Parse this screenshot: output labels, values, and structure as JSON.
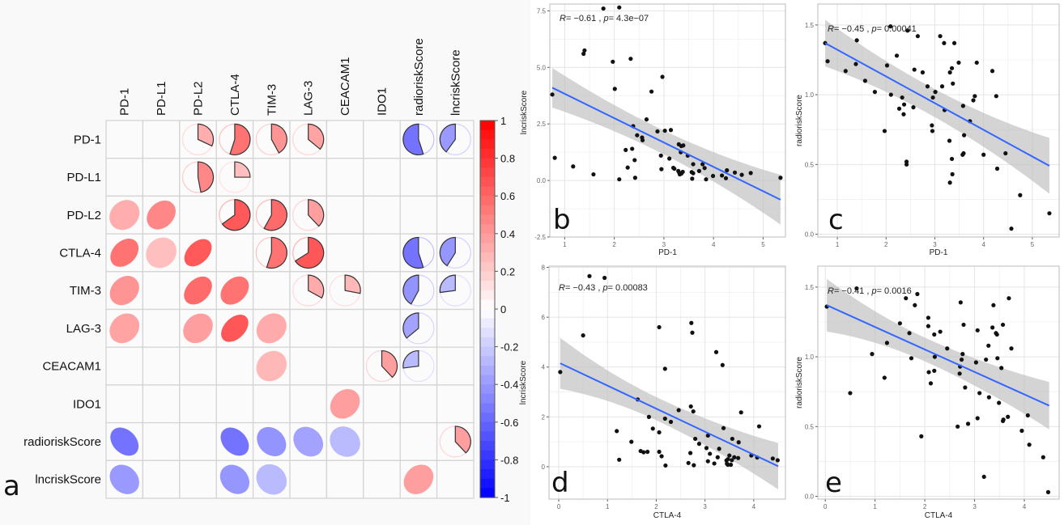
{
  "figure": {
    "panel_letters": [
      "a",
      "b",
      "c",
      "d",
      "e"
    ]
  },
  "chart_data": [
    {
      "type": "heatmap",
      "panel": "a",
      "title": "",
      "variables": [
        "PD-1",
        "PD-L1",
        "PD-L2",
        "CTLA-4",
        "TIM-3",
        "LAG-3",
        "CEACAM1",
        "IDO1",
        "radioriskScore",
        "lncriskScore"
      ],
      "upper_glyph": "pie",
      "lower_glyph": "ellipse",
      "blank_if_insignificant": true,
      "correlations": [
        {
          "a": "PD-1",
          "b": "PD-L2",
          "r": 0.32
        },
        {
          "a": "PD-1",
          "b": "CTLA-4",
          "r": 0.55
        },
        {
          "a": "PD-1",
          "b": "TIM-3",
          "r": 0.42
        },
        {
          "a": "PD-1",
          "b": "LAG-3",
          "r": 0.36
        },
        {
          "a": "PD-1",
          "b": "radioriskScore",
          "r": -0.55
        },
        {
          "a": "PD-1",
          "b": "lncriskScore",
          "r": -0.4
        },
        {
          "a": "PD-L1",
          "b": "PD-L2",
          "r": 0.47
        },
        {
          "a": "PD-L1",
          "b": "CTLA-4",
          "r": 0.25
        },
        {
          "a": "PD-L2",
          "b": "CTLA-4",
          "r": 0.65
        },
        {
          "a": "PD-L2",
          "b": "TIM-3",
          "r": 0.58
        },
        {
          "a": "PD-L2",
          "b": "LAG-3",
          "r": 0.38
        },
        {
          "a": "CTLA-4",
          "b": "TIM-3",
          "r": 0.55
        },
        {
          "a": "CTLA-4",
          "b": "LAG-3",
          "r": 0.66
        },
        {
          "a": "CTLA-4",
          "b": "radioriskScore",
          "r": -0.55
        },
        {
          "a": "CTLA-4",
          "b": "lncriskScore",
          "r": -0.41
        },
        {
          "a": "TIM-3",
          "b": "LAG-3",
          "r": 0.33
        },
        {
          "a": "TIM-3",
          "b": "CEACAM1",
          "r": 0.28
        },
        {
          "a": "TIM-3",
          "b": "radioriskScore",
          "r": -0.42
        },
        {
          "a": "TIM-3",
          "b": "lncriskScore",
          "r": -0.27
        },
        {
          "a": "LAG-3",
          "b": "radioriskScore",
          "r": -0.36
        },
        {
          "a": "CEACAM1",
          "b": "IDO1",
          "r": 0.38
        },
        {
          "a": "CEACAM1",
          "b": "radioriskScore",
          "r": -0.27
        },
        {
          "a": "radioriskScore",
          "b": "lncriskScore",
          "r": 0.38
        }
      ],
      "colorbar": {
        "range": [
          -1,
          1
        ],
        "ticks": [
          "1",
          "0.8",
          "0.6",
          "0.4",
          "0.2",
          "0",
          "-0.2",
          "-0.4",
          "-0.6",
          "-0.8",
          "-1"
        ],
        "colors": {
          "low": "#0000ff",
          "mid": "#ffffff",
          "high": "#ff0000"
        }
      }
    },
    {
      "type": "scatter",
      "panel": "b",
      "xlabel": "PD-1",
      "ylabel": "lncriskScore",
      "xlim": [
        0.7,
        5.45
      ],
      "ylim": [
        -2.5,
        7.8
      ],
      "xticks": [
        1,
        2,
        3,
        4,
        5
      ],
      "yticks": [
        -2.5,
        0.0,
        2.5,
        5.0,
        7.5
      ],
      "ytick_labels": [
        "-2.5",
        "0.0",
        "2.5",
        "5.0",
        "7.5"
      ],
      "annotation": {
        "r_label": "R",
        "r_value": "= −0.61 , ",
        "p_label": "p",
        "p_value": "= 4.3e−07"
      },
      "fit": {
        "x": [
          0.75,
          5.35
        ],
        "y": [
          4.1,
          -0.85
        ],
        "ci_low": [
          3.0,
          -2.0
        ],
        "ci_high": [
          5.15,
          0.25
        ]
      },
      "line_color": "#3366ff",
      "points": [
        [
          1.78,
          7.6
        ],
        [
          2.1,
          7.65
        ],
        [
          1.38,
          5.6
        ],
        [
          1.4,
          5.75
        ],
        [
          1.97,
          5.25
        ],
        [
          2.33,
          5.38
        ],
        [
          2.97,
          4.58
        ],
        [
          2.01,
          4.05
        ],
        [
          2.75,
          3.93
        ],
        [
          0.75,
          3.8
        ],
        [
          2.65,
          2.7
        ],
        [
          2.87,
          2.17
        ],
        [
          3.02,
          2.2
        ],
        [
          3.14,
          2.23
        ],
        [
          2.38,
          2.4
        ],
        [
          2.46,
          2.0
        ],
        [
          2.56,
          1.9
        ],
        [
          2.57,
          1.78
        ],
        [
          3.3,
          1.6
        ],
        [
          3.35,
          1.52
        ],
        [
          3.39,
          1.55
        ],
        [
          3.34,
          1.25
        ],
        [
          3.48,
          1.1
        ],
        [
          2.23,
          1.35
        ],
        [
          2.36,
          1.4
        ],
        [
          2.94,
          1.1
        ],
        [
          3.11,
          0.97
        ],
        [
          0.8,
          1.0
        ],
        [
          2.41,
          0.9
        ],
        [
          1.17,
          0.62
        ],
        [
          2.27,
          0.57
        ],
        [
          3.19,
          0.56
        ],
        [
          3.21,
          0.52
        ],
        [
          2.95,
          0.5
        ],
        [
          3.29,
          0.42
        ],
        [
          3.31,
          0.34
        ],
        [
          3.32,
          0.27
        ],
        [
          3.35,
          0.3
        ],
        [
          3.38,
          0.38
        ],
        [
          3.56,
          0.37
        ],
        [
          3.59,
          0.32
        ],
        [
          3.59,
          0.72
        ],
        [
          3.78,
          0.72
        ],
        [
          3.71,
          0.42
        ],
        [
          3.82,
          0.55
        ],
        [
          1.58,
          0.27
        ],
        [
          2.42,
          0.12
        ],
        [
          2.1,
          0.05
        ],
        [
          3.57,
          0.08
        ],
        [
          3.85,
          0.05
        ],
        [
          3.99,
          0.2
        ],
        [
          4.17,
          0.22
        ],
        [
          4.25,
          0.1
        ],
        [
          4.27,
          0.45
        ],
        [
          4.43,
          0.35
        ],
        [
          4.57,
          0.25
        ],
        [
          4.75,
          0.33
        ],
        [
          5.35,
          0.12
        ]
      ]
    },
    {
      "type": "scatter",
      "panel": "c",
      "xlabel": "PD-1",
      "ylabel": "radioriskScore",
      "xlim": [
        0.6,
        5.55
      ],
      "ylim": [
        -0.02,
        1.65
      ],
      "xticks": [
        1,
        2,
        3,
        4,
        5
      ],
      "yticks": [
        0.0,
        0.5,
        1.0,
        1.5
      ],
      "ytick_labels": [
        "0.0",
        "0.5",
        "1.0",
        "1.5"
      ],
      "annotation": {
        "r_label": "R",
        "r_value": "= −0.45 , ",
        "p_label": "p",
        "p_value": "= 0.00041"
      },
      "fit": {
        "x": [
          0.75,
          5.35
        ],
        "y": [
          1.37,
          0.49
        ],
        "ci_low": [
          1.18,
          0.28
        ],
        "ci_high": [
          1.57,
          0.69
        ]
      },
      "line_color": "#3366ff",
      "points": [
        [
          2.09,
          1.49
        ],
        [
          2.44,
          1.46
        ],
        [
          2.65,
          1.42
        ],
        [
          3.11,
          1.42
        ],
        [
          3.19,
          1.37
        ],
        [
          3.4,
          1.37
        ],
        [
          0.75,
          1.37
        ],
        [
          1.4,
          1.39
        ],
        [
          2.22,
          1.28
        ],
        [
          0.8,
          1.24
        ],
        [
          1.38,
          1.22
        ],
        [
          2.02,
          1.21
        ],
        [
          3.49,
          1.23
        ],
        [
          3.86,
          1.23
        ],
        [
          4.18,
          1.17
        ],
        [
          1.17,
          1.17
        ],
        [
          2.58,
          1.18
        ],
        [
          2.75,
          1.16
        ],
        [
          3.35,
          1.19
        ],
        [
          3.31,
          1.16
        ],
        [
          1.57,
          1.1
        ],
        [
          3.37,
          1.08
        ],
        [
          2.85,
          1.06
        ],
        [
          3.15,
          1.06
        ],
        [
          3.01,
          1.02
        ],
        [
          1.77,
          1.02
        ],
        [
          2.1,
          1.0
        ],
        [
          2.33,
          0.98
        ],
        [
          2.96,
          0.98
        ],
        [
          3.82,
          0.99
        ],
        [
          4.26,
          0.99
        ],
        [
          2.37,
          0.93
        ],
        [
          3.58,
          0.92
        ],
        [
          3.79,
          0.96
        ],
        [
          2.27,
          0.9
        ],
        [
          2.56,
          0.91
        ],
        [
          3.2,
          0.89
        ],
        [
          2.36,
          0.86
        ],
        [
          3.72,
          0.81
        ],
        [
          2.94,
          0.78
        ],
        [
          1.97,
          0.74
        ],
        [
          2.95,
          0.74
        ],
        [
          3.6,
          0.71
        ],
        [
          3.3,
          0.67
        ],
        [
          3.57,
          0.57
        ],
        [
          3.59,
          0.58
        ],
        [
          4.0,
          0.57
        ],
        [
          4.45,
          0.58
        ],
        [
          3.35,
          0.54
        ],
        [
          2.42,
          0.52
        ],
        [
          2.42,
          0.5
        ],
        [
          4.28,
          0.47
        ],
        [
          3.36,
          0.43
        ],
        [
          3.31,
          0.37
        ],
        [
          4.75,
          0.28
        ],
        [
          5.35,
          0.15
        ],
        [
          4.57,
          0.04
        ]
      ]
    },
    {
      "type": "scatter",
      "panel": "d",
      "xlabel": "CTLA-4",
      "ylabel": "lncriskScore",
      "xlim": [
        -0.2,
        4.65
      ],
      "ylim": [
        -1.3,
        8.05
      ],
      "xticks": [
        0,
        1,
        2,
        3,
        4
      ],
      "yticks": [
        0,
        2,
        4,
        6,
        8
      ],
      "ytick_labels": [
        "0",
        "2",
        "4",
        "6",
        "8"
      ],
      "annotation": {
        "r_label": "R",
        "r_value": "= −0.43 , ",
        "p_label": "p",
        "p_value": "= 0.00083"
      },
      "fit": {
        "x": [
          0.03,
          4.5
        ],
        "y": [
          4.15,
          0.02
        ],
        "ci_low": [
          2.85,
          -0.9
        ],
        "ci_high": [
          5.45,
          0.95
        ]
      },
      "line_color": "#3366ff",
      "points": [
        [
          0.63,
          7.65
        ],
        [
          0.94,
          7.58
        ],
        [
          2.72,
          5.77
        ],
        [
          2.06,
          5.6
        ],
        [
          2.74,
          5.38
        ],
        [
          0.5,
          5.27
        ],
        [
          3.23,
          4.6
        ],
        [
          3.36,
          4.08
        ],
        [
          2.18,
          3.93
        ],
        [
          0.03,
          3.8
        ],
        [
          1.62,
          2.7
        ],
        [
          2.71,
          2.42
        ],
        [
          2.46,
          2.27
        ],
        [
          2.76,
          2.22
        ],
        [
          3.74,
          2.18
        ],
        [
          1.85,
          2.0
        ],
        [
          2.18,
          1.93
        ],
        [
          2.3,
          1.8
        ],
        [
          4.11,
          1.62
        ],
        [
          3.38,
          1.55
        ],
        [
          1.93,
          1.53
        ],
        [
          1.19,
          1.43
        ],
        [
          2.06,
          1.38
        ],
        [
          3.06,
          1.25
        ],
        [
          2.8,
          1.12
        ],
        [
          3.56,
          1.12
        ],
        [
          1.49,
          1.0
        ],
        [
          3.69,
          0.98
        ],
        [
          2.88,
          0.92
        ],
        [
          3.03,
          0.75
        ],
        [
          3.29,
          0.72
        ],
        [
          1.68,
          0.63
        ],
        [
          1.74,
          0.58
        ],
        [
          1.82,
          0.6
        ],
        [
          2.06,
          0.6
        ],
        [
          2.7,
          0.55
        ],
        [
          3.1,
          0.52
        ],
        [
          3.5,
          0.45
        ],
        [
          3.95,
          0.45
        ],
        [
          2.11,
          0.42
        ],
        [
          3.26,
          0.38
        ],
        [
          3.6,
          0.38
        ],
        [
          3.68,
          0.35
        ],
        [
          4.07,
          0.37
        ],
        [
          4.39,
          0.33
        ],
        [
          4.49,
          0.26
        ],
        [
          1.24,
          0.28
        ],
        [
          3.44,
          0.25
        ],
        [
          3.47,
          0.3
        ],
        [
          3.55,
          0.26
        ],
        [
          3.06,
          0.22
        ],
        [
          2.66,
          0.15
        ],
        [
          3.19,
          0.13
        ],
        [
          3.45,
          0.12
        ],
        [
          3.47,
          0.08
        ],
        [
          3.53,
          0.08
        ],
        [
          2.19,
          0.05
        ],
        [
          2.77,
          0.06
        ]
      ]
    },
    {
      "type": "scatter",
      "panel": "e",
      "xlabel": "CTLA-4",
      "ylabel": "radioriskScore",
      "xlim": [
        -0.15,
        4.7
      ],
      "ylim": [
        -0.02,
        1.65
      ],
      "xticks": [
        0,
        1,
        2,
        3,
        4
      ],
      "yticks": [
        0.0,
        0.5,
        1.0,
        1.5
      ],
      "ytick_labels": [
        "0.0",
        "0.5",
        "1.0",
        "1.5"
      ],
      "annotation": {
        "r_label": "R",
        "r_value": "= −0.41 , ",
        "p_label": "p",
        "p_value": "= 0.0016"
      },
      "fit": {
        "x": [
          0.03,
          4.5
        ],
        "y": [
          1.37,
          0.65
        ],
        "ci_low": [
          1.14,
          0.49
        ],
        "ci_high": [
          1.61,
          0.82
        ]
      },
      "line_color": "#3366ff",
      "points": [
        [
          0.63,
          1.49
        ],
        [
          1.85,
          1.45
        ],
        [
          1.62,
          1.42
        ],
        [
          3.69,
          1.42
        ],
        [
          1.8,
          1.37
        ],
        [
          2.72,
          1.39
        ],
        [
          3.38,
          1.37
        ],
        [
          0.03,
          1.36
        ],
        [
          2.07,
          1.28
        ],
        [
          1.5,
          1.24
        ],
        [
          2.07,
          1.22
        ],
        [
          2.78,
          1.23
        ],
        [
          3.57,
          1.23
        ],
        [
          3.36,
          1.21
        ],
        [
          1.69,
          1.17
        ],
        [
          2.19,
          1.16
        ],
        [
          2.31,
          1.18
        ],
        [
          3.06,
          1.19
        ],
        [
          3.43,
          1.17
        ],
        [
          3.45,
          1.16
        ],
        [
          1.24,
          1.1
        ],
        [
          2.45,
          1.06
        ],
        [
          3.28,
          1.08
        ],
        [
          3.74,
          1.06
        ],
        [
          0.94,
          1.02
        ],
        [
          1.73,
          0.99
        ],
        [
          2.2,
          1.0
        ],
        [
          2.76,
          1.02
        ],
        [
          2.74,
          0.98
        ],
        [
          3.03,
          0.96
        ],
        [
          3.23,
          0.98
        ],
        [
          3.46,
          0.99
        ],
        [
          2.71,
          0.93
        ],
        [
          3.54,
          0.92
        ],
        [
          2.08,
          0.89
        ],
        [
          2.19,
          0.9
        ],
        [
          2.7,
          0.88
        ],
        [
          1.19,
          0.85
        ],
        [
          2.12,
          0.81
        ],
        [
          2.81,
          0.78
        ],
        [
          0.5,
          0.74
        ],
        [
          3.1,
          0.74
        ],
        [
          3.29,
          0.71
        ],
        [
          3.49,
          0.67
        ],
        [
          3.06,
          0.56
        ],
        [
          3.67,
          0.57
        ],
        [
          4.07,
          0.58
        ],
        [
          3.57,
          0.54
        ],
        [
          3.58,
          0.55
        ],
        [
          2.87,
          0.52
        ],
        [
          2.66,
          0.5
        ],
        [
          3.95,
          0.47
        ],
        [
          1.93,
          0.43
        ],
        [
          4.1,
          0.37
        ],
        [
          4.38,
          0.28
        ],
        [
          3.19,
          0.14
        ],
        [
          4.48,
          0.03
        ]
      ]
    }
  ]
}
